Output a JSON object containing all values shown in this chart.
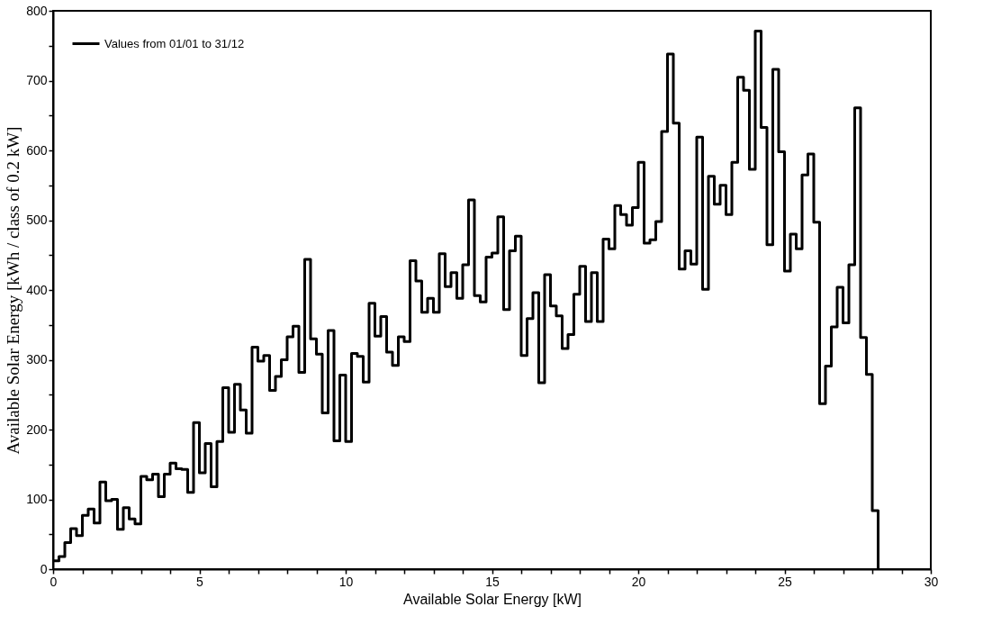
{
  "chart_data": {
    "type": "histogram",
    "xlabel": "Available Solar Energy [kW]",
    "ylabel": "Available Solar Energy [kWh / class of 0.2 kW]",
    "bins": [
      0,
      0.2,
      0.4,
      0.6,
      0.8,
      1,
      1.2,
      1.4,
      1.6,
      1.8,
      2,
      2.2,
      2.4,
      2.6,
      2.8,
      3,
      3.2,
      3.4,
      3.6,
      3.8,
      4,
      4.2,
      4.4,
      4.6,
      4.8,
      5,
      5.2,
      5.4,
      5.6,
      5.8,
      6,
      6.2,
      6.4,
      6.6,
      6.8,
      7,
      7.2,
      7.4,
      7.6,
      7.8,
      8,
      8.2,
      8.4,
      8.6,
      8.8,
      9,
      9.2,
      9.4,
      9.6,
      9.8,
      10,
      10.2,
      10.4,
      10.6,
      10.8,
      11,
      11.2,
      11.4,
      11.6,
      11.8,
      12,
      12.2,
      12.4,
      12.6,
      12.8,
      13,
      13.2,
      13.4,
      13.6,
      13.8,
      14,
      14.2,
      14.4,
      14.6,
      14.8,
      15,
      15.2,
      15.4,
      15.6,
      15.8,
      16,
      16.2,
      16.4,
      16.6,
      16.8,
      17,
      17.2,
      17.4,
      17.6,
      17.8,
      18,
      18.2,
      18.4,
      18.6,
      18.8,
      19,
      19.2,
      19.4,
      19.6,
      19.8,
      20,
      20.2,
      20.4,
      20.6,
      20.8,
      21,
      21.2,
      21.4,
      21.6,
      21.8,
      22,
      22.2,
      22.4,
      22.6,
      22.8,
      23,
      23.2,
      23.4,
      23.6,
      23.8,
      24,
      24.2,
      24.4,
      24.6,
      24.8,
      25,
      25.2,
      25.4,
      25.6,
      25.8,
      26,
      26.2,
      26.4,
      26.6,
      26.8,
      27,
      27.2,
      27.4,
      27.6,
      27.8,
      28,
      28.2
    ],
    "series": [
      {
        "name": "Values from 01/01 to 31/12",
        "color": "#000000",
        "values": [
          12,
          18,
          38,
          58,
          48,
          77,
          86,
          66,
          125,
          98,
          100,
          57,
          88,
          72,
          65,
          133,
          128,
          136,
          104,
          136,
          152,
          144,
          143,
          110,
          210,
          138,
          180,
          118,
          183,
          260,
          196,
          265,
          228,
          195,
          318,
          298,
          306,
          256,
          276,
          300,
          333,
          348,
          282,
          444,
          330,
          308,
          224,
          342,
          184,
          278,
          183,
          309,
          305,
          268,
          381,
          334,
          362,
          311,
          292,
          333,
          326,
          442,
          413,
          368,
          388,
          368,
          452,
          405,
          425,
          388,
          436,
          529,
          392,
          383,
          447,
          453,
          505,
          372,
          456,
          477,
          306,
          359,
          396,
          267,
          422,
          377,
          363,
          316,
          336,
          394,
          434,
          355,
          425,
          355,
          473,
          459,
          521,
          508,
          493,
          518,
          583,
          467,
          472,
          498,
          627,
          738,
          639,
          430,
          456,
          437,
          619,
          401,
          563,
          523,
          550,
          508,
          583,
          705,
          686,
          573,
          771,
          633,
          465,
          716,
          598,
          427,
          480,
          459,
          565,
          595,
          497,
          237,
          291,
          347,
          404,
          353,
          436,
          661,
          332,
          279,
          84
        ]
      }
    ],
    "xlim": [
      0,
      30
    ],
    "ylim": [
      0,
      800
    ],
    "xticks": [
      0,
      {
        "value": 1,
        "label": null
      },
      {
        "value": 2,
        "label": null
      },
      {
        "value": 3,
        "label": null
      },
      {
        "value": 4,
        "label": null
      },
      5,
      {
        "value": 6,
        "label": null
      },
      {
        "value": 7,
        "label": null
      },
      {
        "value": 8,
        "label": null
      },
      {
        "value": 9,
        "label": null
      },
      10,
      {
        "value": 11,
        "label": null
      },
      {
        "value": 12,
        "label": null
      },
      {
        "value": 13,
        "label": null
      },
      {
        "value": 14,
        "label": null
      },
      15,
      {
        "value": 16,
        "label": null
      },
      {
        "value": 17,
        "label": null
      },
      {
        "value": 18,
        "label": null
      },
      {
        "value": 19,
        "label": null
      },
      20,
      {
        "value": 21,
        "label": null
      },
      {
        "value": 22,
        "label": null
      },
      {
        "value": 23,
        "label": null
      },
      {
        "value": 24,
        "label": null
      },
      25,
      {
        "value": 26,
        "label": null
      },
      {
        "value": 27,
        "label": null
      },
      {
        "value": 28,
        "label": null
      },
      {
        "value": 29,
        "label": null
      },
      30
    ],
    "yticks": [
      0,
      {
        "value": 50,
        "label": null
      },
      100,
      {
        "value": 150,
        "label": null
      },
      200,
      {
        "value": 250,
        "label": null
      },
      300,
      {
        "value": 350,
        "label": null
      },
      400,
      {
        "value": 450,
        "label": null
      },
      500,
      {
        "value": 550,
        "label": null
      },
      600,
      {
        "value": 650,
        "label": null
      },
      700,
      {
        "value": 750,
        "label": null
      },
      800
    ],
    "legend": "top left",
    "grid": false
  }
}
